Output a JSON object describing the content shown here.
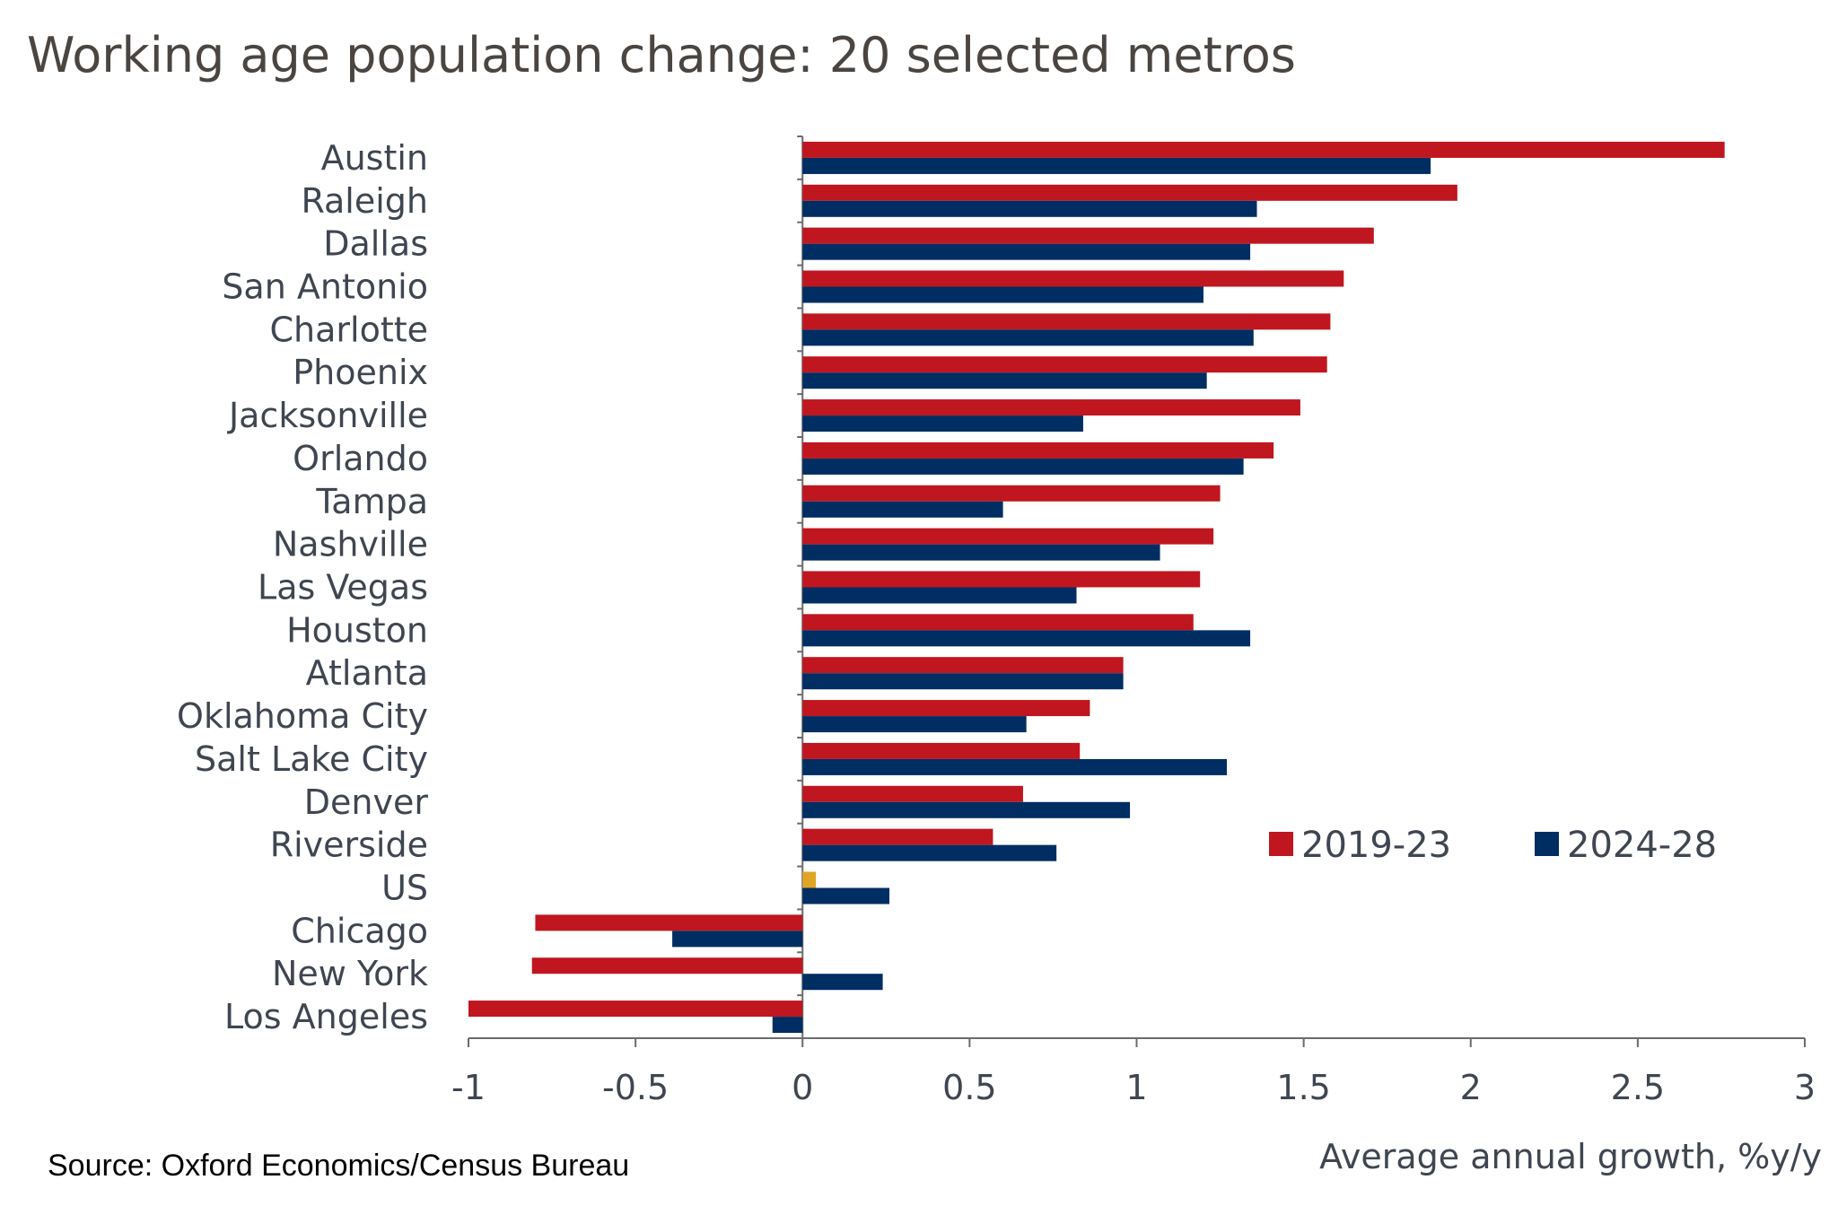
{
  "chart_data": {
    "type": "bar",
    "orientation": "horizontal",
    "title": "Working age population change: 20 selected metros",
    "xlabel": "Average annual growth, %y/y",
    "ylabel": "",
    "xlim": [
      -1,
      3
    ],
    "xticks": [
      "-1",
      "-0.5",
      "0",
      "0.5",
      "1",
      "1.5",
      "2",
      "2.5",
      "3"
    ],
    "grid": false,
    "legend_position": "lower-right",
    "categories": [
      "Austin",
      "Raleigh",
      "Dallas",
      "San Antonio",
      "Charlotte",
      "Phoenix",
      "Jacksonville",
      "Orlando",
      "Tampa",
      "Nashville",
      "Las Vegas",
      "Houston",
      "Atlanta",
      "Oklahoma City",
      "Salt Lake City",
      "Denver",
      "Riverside",
      "US",
      "Chicago",
      "New York",
      "Los Angeles"
    ],
    "series": [
      {
        "name": "2019-23",
        "color": "#C0161F",
        "values": [
          2.76,
          1.96,
          1.71,
          1.62,
          1.58,
          1.57,
          1.49,
          1.41,
          1.25,
          1.23,
          1.19,
          1.17,
          0.96,
          0.86,
          0.83,
          0.66,
          0.57,
          0.04,
          -0.8,
          -0.81,
          -1.0
        ]
      },
      {
        "name": "2024-28",
        "color": "#002D62",
        "values": [
          1.88,
          1.36,
          1.34,
          1.2,
          1.35,
          1.21,
          0.84,
          1.32,
          0.6,
          1.07,
          0.82,
          1.34,
          0.96,
          0.67,
          1.27,
          0.98,
          0.76,
          0.26,
          -0.39,
          0.24,
          -0.09
        ]
      }
    ],
    "highlight": {
      "category": "US",
      "series": "2019-23",
      "color": "#E0A526"
    }
  },
  "source": "Source: Oxford Economics/Census Bureau"
}
